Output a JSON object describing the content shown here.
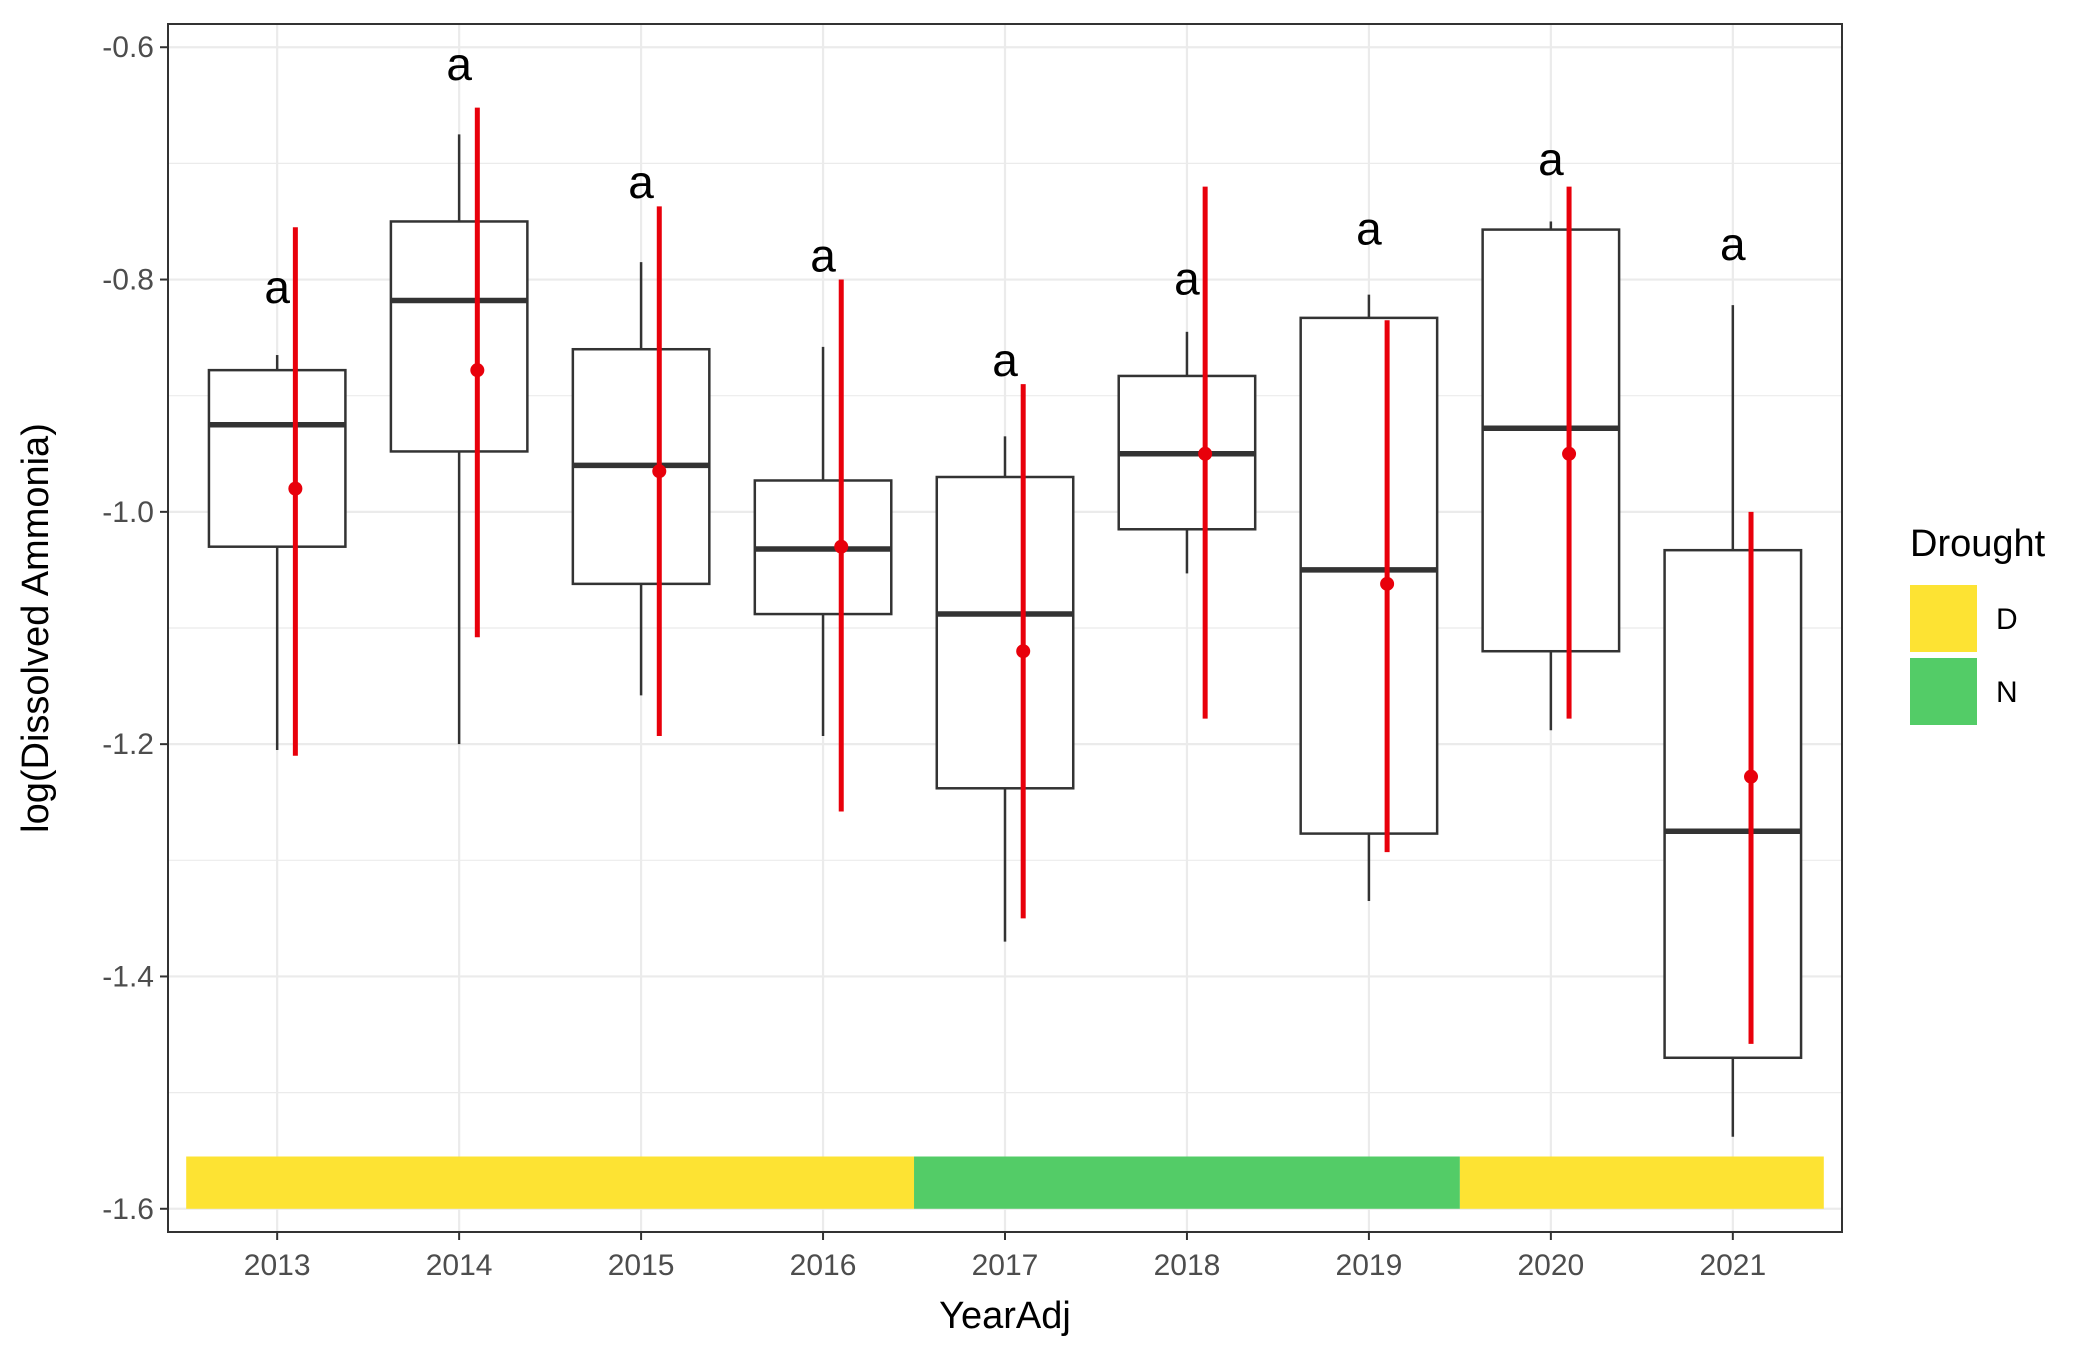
{
  "chart_data": {
    "type": "box",
    "xlabel": "YearAdj",
    "ylabel": "log(Dissolved Ammonia)",
    "ylim": [
      -1.62,
      -0.58
    ],
    "yticks": [
      -1.6,
      -1.4,
      -1.2,
      -1.0,
      -0.8,
      -0.6
    ],
    "ytick_labels": [
      "-1.6",
      "-1.4",
      "-1.2",
      "-1.0",
      "-0.8",
      "-0.6"
    ],
    "grid": true,
    "legend": {
      "title": "Drought",
      "position": "right",
      "items": [
        {
          "label": "D",
          "color": "#FDE333"
        },
        {
          "label": "N",
          "color": "#53CC67"
        }
      ]
    },
    "categories": [
      "2013",
      "2014",
      "2015",
      "2016",
      "2017",
      "2018",
      "2019",
      "2020",
      "2021"
    ],
    "boxes": [
      {
        "year": "2013",
        "whisker_low": -1.205,
        "q1": -1.03,
        "median": -0.925,
        "q3": -0.878,
        "whisker_high": -0.865,
        "mean": -0.98,
        "ci_low": -1.21,
        "ci_high": -0.755,
        "letter": "a",
        "letter_y": -0.82
      },
      {
        "year": "2014",
        "whisker_low": -1.2,
        "q1": -0.948,
        "median": -0.818,
        "q3": -0.75,
        "whisker_high": -0.675,
        "mean": -0.878,
        "ci_low": -1.108,
        "ci_high": -0.652,
        "letter": "a",
        "letter_y": -0.628
      },
      {
        "year": "2015",
        "whisker_low": -1.158,
        "q1": -1.062,
        "median": -0.96,
        "q3": -0.86,
        "whisker_high": -0.785,
        "mean": -0.965,
        "ci_low": -1.193,
        "ci_high": -0.737,
        "letter": "a",
        "letter_y": -0.73
      },
      {
        "year": "2016",
        "whisker_low": -1.193,
        "q1": -1.088,
        "median": -1.032,
        "q3": -0.973,
        "whisker_high": -0.858,
        "mean": -1.03,
        "ci_low": -1.258,
        "ci_high": -0.8,
        "letter": "a",
        "letter_y": -0.793
      },
      {
        "year": "2017",
        "whisker_low": -1.37,
        "q1": -1.238,
        "median": -1.088,
        "q3": -0.97,
        "whisker_high": -0.935,
        "mean": -1.12,
        "ci_low": -1.35,
        "ci_high": -0.89,
        "letter": "a",
        "letter_y": -0.883
      },
      {
        "year": "2018",
        "whisker_low": -1.053,
        "q1": -1.015,
        "median": -0.95,
        "q3": -0.883,
        "whisker_high": -0.845,
        "mean": -0.95,
        "ci_low": -1.178,
        "ci_high": -0.72,
        "letter": "a",
        "letter_y": -0.813
      },
      {
        "year": "2019",
        "whisker_low": -1.335,
        "q1": -1.277,
        "median": -1.05,
        "q3": -0.833,
        "whisker_high": -0.813,
        "mean": -1.062,
        "ci_low": -1.293,
        "ci_high": -0.835,
        "letter": "a",
        "letter_y": -0.77
      },
      {
        "year": "2020",
        "whisker_low": -1.188,
        "q1": -1.12,
        "median": -0.928,
        "q3": -0.757,
        "whisker_high": -0.75,
        "mean": -0.95,
        "ci_low": -1.178,
        "ci_high": -0.72,
        "letter": "a",
        "letter_y": -0.71
      },
      {
        "year": "2021",
        "whisker_low": -1.538,
        "q1": -1.47,
        "median": -1.275,
        "q3": -1.033,
        "whisker_high": -0.822,
        "mean": -1.228,
        "ci_low": -1.458,
        "ci_high": -1.0,
        "letter": "a",
        "letter_y": -0.783
      }
    ],
    "drought_bar": {
      "y_bottom": -1.6,
      "y_top": -1.555,
      "segments": [
        {
          "from": "2013",
          "to": "2016",
          "label": "D"
        },
        {
          "from": "2017",
          "to": "2019",
          "label": "N"
        },
        {
          "from": "2020",
          "to": "2021",
          "label": "D"
        }
      ]
    },
    "colors": {
      "mean_ci": "#E8000B",
      "box": "#333333",
      "grid": "#EBEBEB",
      "panel_border": "#333333"
    }
  }
}
